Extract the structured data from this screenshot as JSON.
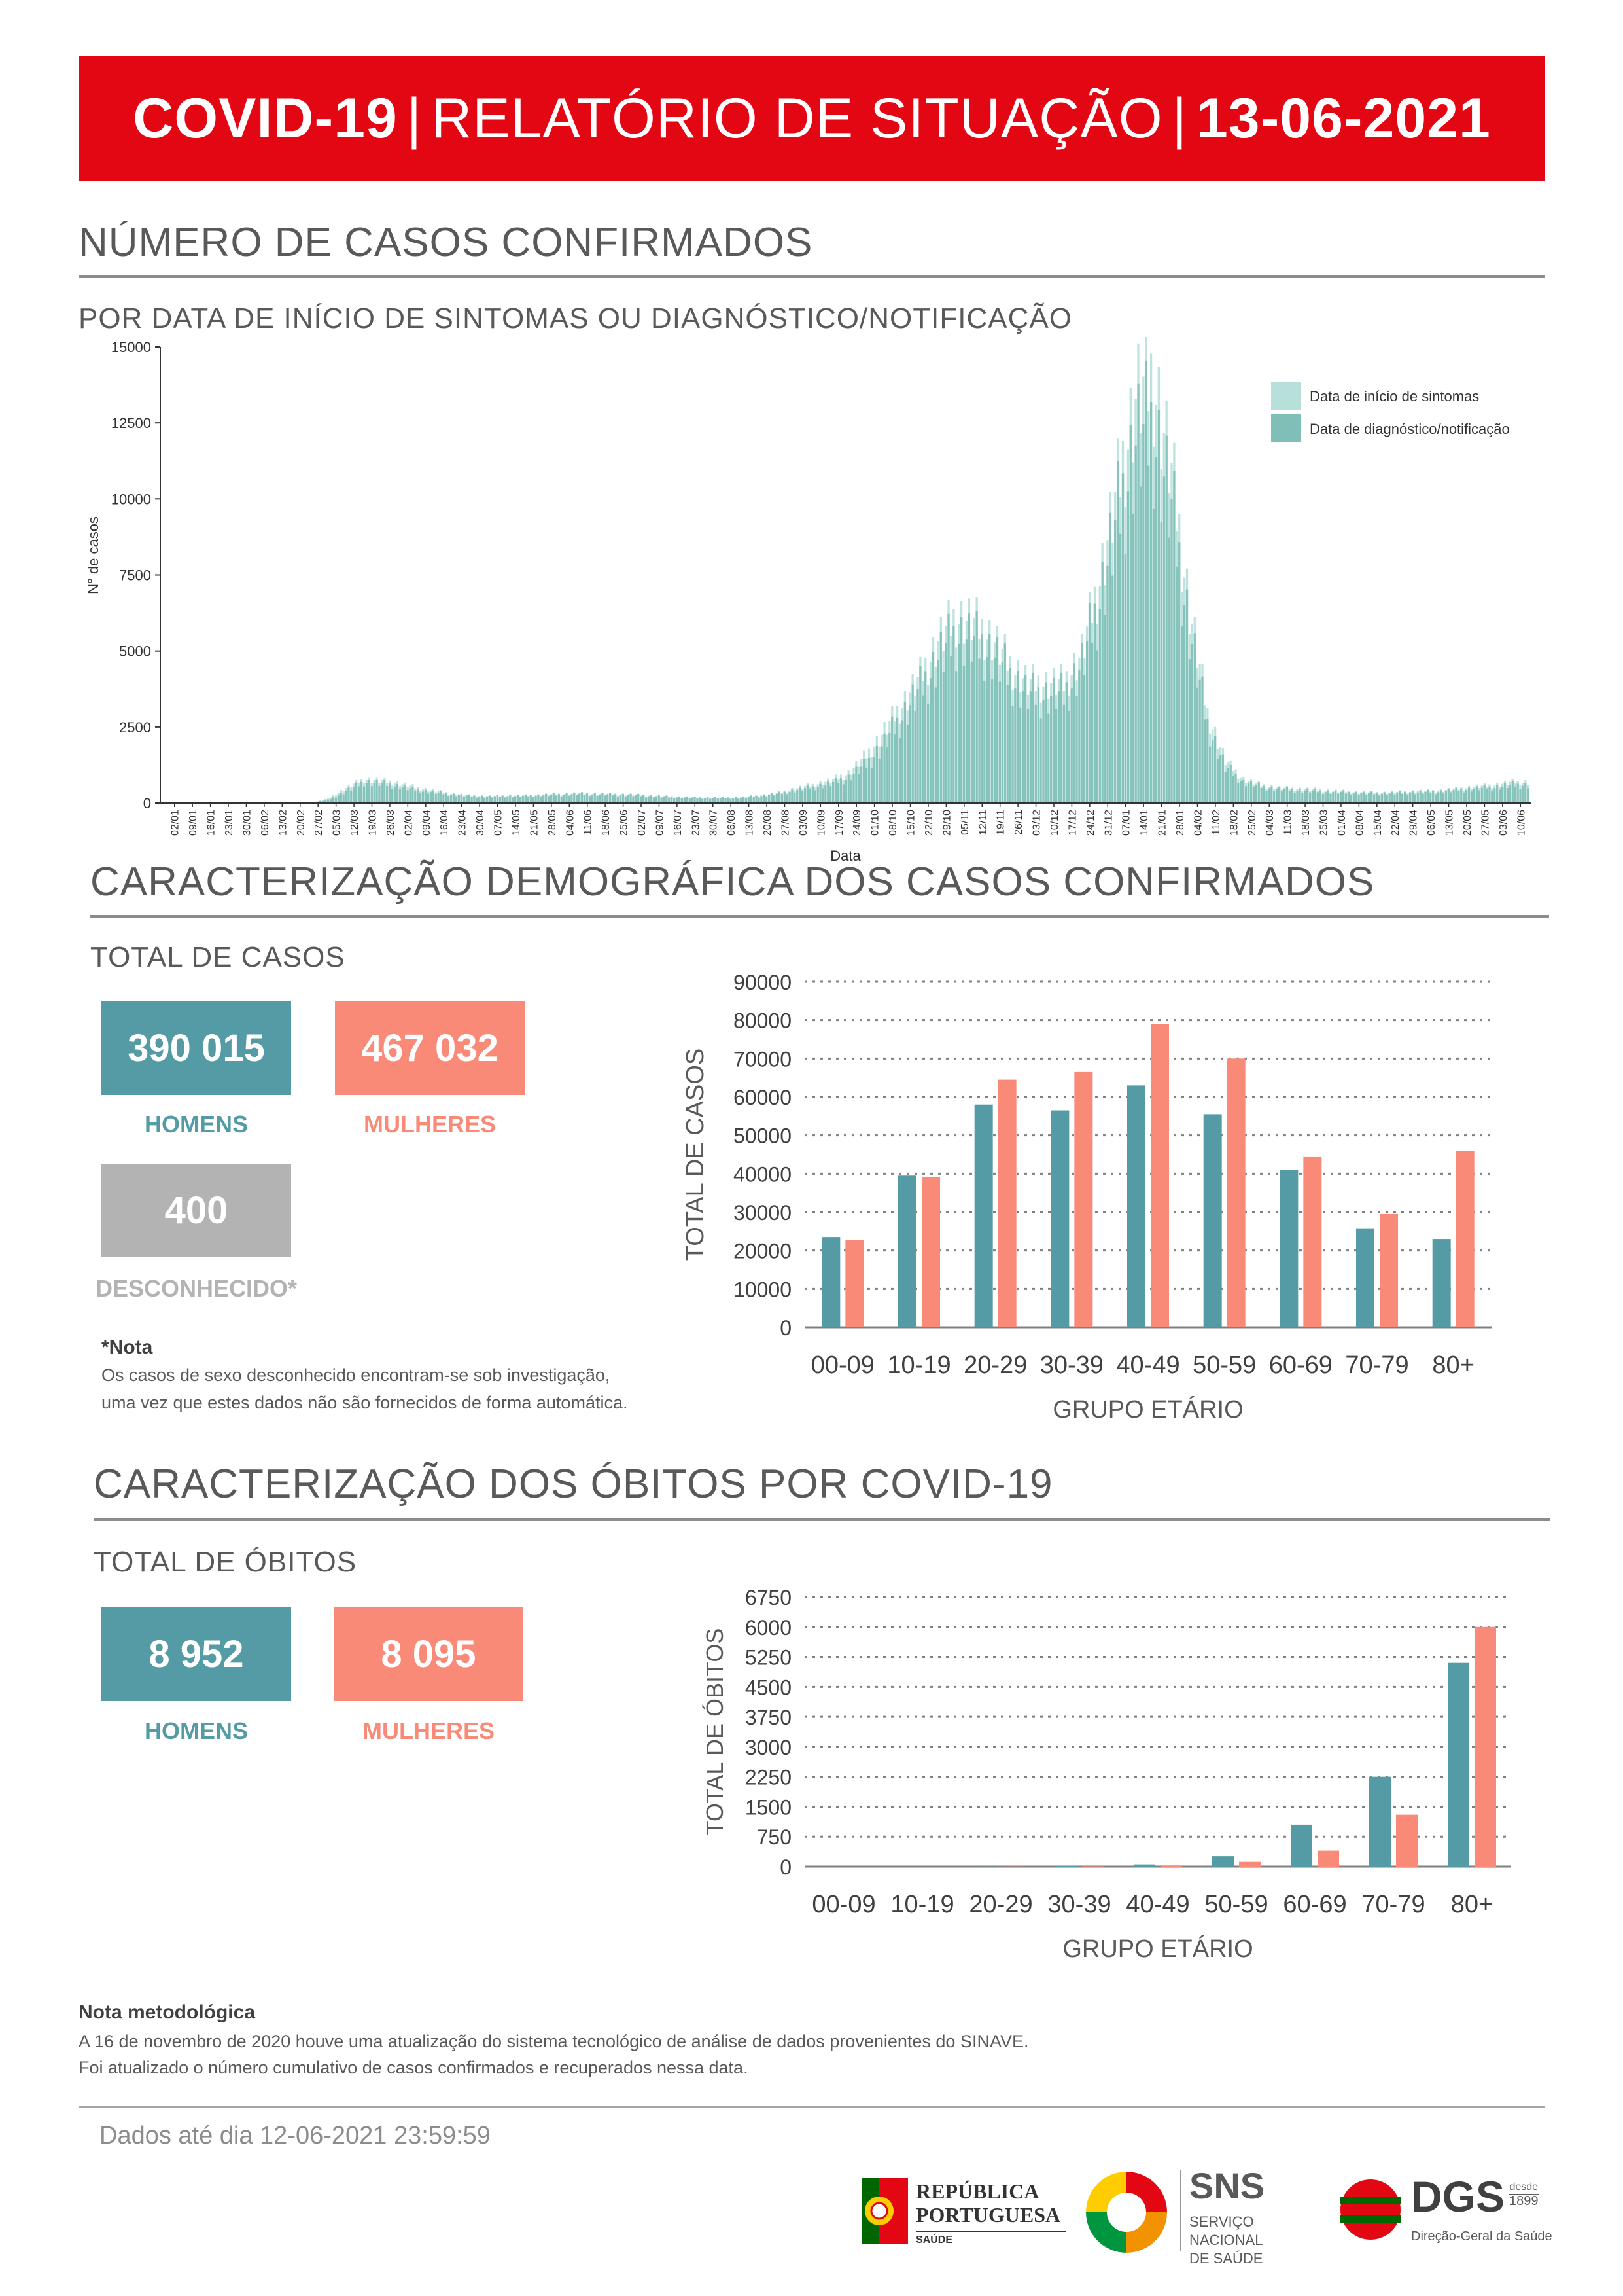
{
  "header": {
    "title_bold": "COVID-19",
    "separator": "|",
    "title_main": "RELATÓRIO DE SITUAÇÃO",
    "date": "13-06-2021"
  },
  "colors": {
    "banner_red": "#e30613",
    "teal": "#549ba5",
    "salmon": "#f98a78",
    "grey": "#b3b3b3",
    "light_teal": "#b7e0da",
    "mid_teal": "#7fbfb7"
  },
  "cases_section": {
    "title": "NÚMERO DE CASOS CONFIRMADOS",
    "subtitle": "POR DATA DE INÍCIO DE SINTOMAS OU DIAGNÓSTICO/NOTIFICAÇÃO"
  },
  "demographic_section": {
    "title": "CARACTERIZAÇÃO DEMOGRÁFICA DOS CASOS CONFIRMADOS",
    "total_label": "TOTAL DE CASOS",
    "men_value": "390 015",
    "men_label": "HOMENS",
    "women_value": "467 032",
    "women_label": "MULHERES",
    "unknown_value": "400",
    "unknown_label": "DESCONHECIDO*",
    "note_title": "*Nota",
    "note_line1": "Os casos de sexo desconhecido encontram-se sob investigação,",
    "note_line2": "uma vez que estes dados não são fornecidos de forma automática."
  },
  "deaths_section": {
    "title": "CARACTERIZAÇÃO DOS ÓBITOS POR COVID-19",
    "total_label": "TOTAL DE ÓBITOS",
    "men_value": "8 952",
    "men_label": "HOMENS",
    "women_value": "8 095",
    "women_label": "MULHERES"
  },
  "methodology": {
    "title": "Nota metodológica",
    "line1": "A 16 de novembro de 2020 houve uma atualização do sistema tecnológico de análise de dados provenientes do SINAVE.",
    "line2": "Foi atualizado o número cumulativo de casos confirmados e recuperados nessa data."
  },
  "footer": {
    "data_until": "Dados até dia 12-06-2021 23:59:59",
    "logo1_line1": "REPÚBLICA",
    "logo1_line2": "PORTUGUESA",
    "logo1_line3": "SAÚDE",
    "logo2_big": "SNS",
    "logo2_line1": "SERVIÇO NACIONAL",
    "logo2_line2": "DE SAÚDE",
    "logo3_big": "DGS",
    "logo3_since": "desde",
    "logo3_year": "1899",
    "logo3_sub": "Direção-Geral da Saúde"
  },
  "chart_data": [
    {
      "type": "bar",
      "id": "daily",
      "xlabel": "Data",
      "ylabel": "N° de casos",
      "ylim": [
        0,
        15000
      ],
      "yticks": [
        0,
        2500,
        5000,
        7500,
        10000,
        12500,
        15000
      ],
      "xtick_labels": [
        "02/01",
        "09/01",
        "16/01",
        "23/01",
        "30/01",
        "06/02",
        "13/02",
        "20/02",
        "27/02",
        "05/03",
        "12/03",
        "19/03",
        "26/03",
        "02/04",
        "09/04",
        "16/04",
        "23/04",
        "30/04",
        "07/05",
        "14/05",
        "21/05",
        "28/05",
        "04/06",
        "11/06",
        "18/06",
        "25/06",
        "02/07",
        "09/07",
        "16/07",
        "23/07",
        "30/07",
        "06/08",
        "13/08",
        "20/08",
        "27/08",
        "03/09",
        "10/09",
        "17/09",
        "24/09",
        "01/10",
        "08/10",
        "15/10",
        "22/10",
        "29/10",
        "05/11",
        "12/11",
        "19/11",
        "26/11",
        "03/12",
        "10/12",
        "17/12",
        "24/12",
        "31/12",
        "07/01",
        "14/01",
        "21/01",
        "28/01",
        "04/02",
        "11/02",
        "18/02",
        "25/02",
        "04/03",
        "11/03",
        "18/03",
        "25/03",
        "01/04",
        "08/04",
        "15/04",
        "22/04",
        "29/04",
        "06/05",
        "13/05",
        "20/05",
        "27/05",
        "03/06",
        "10/06"
      ],
      "legend_position": "top-right",
      "series": [
        {
          "name": "Data de início de sintomas",
          "color": "#b7e0da",
          "weekly_values": [
            0,
            0,
            0,
            0,
            0,
            0,
            0,
            0,
            0,
            150,
            500,
            800,
            750,
            650,
            500,
            400,
            300,
            250,
            230,
            250,
            250,
            280,
            300,
            320,
            300,
            300,
            280,
            250,
            220,
            200,
            180,
            180,
            190,
            250,
            330,
            480,
            600,
            750,
            1000,
            1600,
            2400,
            3300,
            4200,
            5400,
            6200,
            6000,
            5500,
            4600,
            4000,
            4000,
            4000,
            5000,
            7500,
            10500,
            13500,
            14200,
            11000,
            6500,
            3000,
            1400,
            800,
            600,
            500,
            480,
            450,
            400,
            380,
            350,
            350,
            380,
            400,
            420,
            480,
            550,
            600,
            700
          ]
        },
        {
          "name": "Data de diagnóstico/notificação",
          "color": "#7fbfb7",
          "weekly_values": [
            0,
            0,
            0,
            0,
            0,
            0,
            0,
            0,
            0,
            100,
            400,
            700,
            650,
            550,
            420,
            350,
            280,
            230,
            210,
            230,
            230,
            260,
            280,
            300,
            290,
            280,
            260,
            230,
            200,
            180,
            170,
            170,
            180,
            230,
            300,
            420,
            520,
            650,
            850,
            1300,
            2000,
            2900,
            3800,
            4800,
            5600,
            5400,
            5000,
            4200,
            3600,
            3600,
            3600,
            4600,
            6800,
            9500,
            12000,
            12500,
            9800,
            5800,
            2600,
            1200,
            700,
            550,
            450,
            430,
            400,
            370,
            340,
            320,
            320,
            340,
            360,
            380,
            430,
            480,
            520,
            600
          ]
        }
      ]
    },
    {
      "type": "bar",
      "id": "cases_age",
      "xlabel": "GRUPO ETÁRIO",
      "ylabel": "TOTAL DE CASOS",
      "ylim": [
        0,
        90000
      ],
      "yticks": [
        0,
        10000,
        20000,
        30000,
        40000,
        50000,
        60000,
        70000,
        80000,
        90000
      ],
      "categories": [
        "00-09",
        "10-19",
        "20-29",
        "30-39",
        "40-49",
        "50-59",
        "60-69",
        "70-79",
        "80+"
      ],
      "series": [
        {
          "name": "HOMENS",
          "color": "#549ba5",
          "values": [
            23500,
            39500,
            58000,
            56500,
            63000,
            55500,
            41000,
            25800,
            23000
          ]
        },
        {
          "name": "MULHERES",
          "color": "#f98a78",
          "values": [
            22800,
            39200,
            64500,
            66500,
            79000,
            70000,
            44500,
            29500,
            46000
          ]
        }
      ]
    },
    {
      "type": "bar",
      "id": "deaths_age",
      "xlabel": "GRUPO ETÁRIO",
      "ylabel": "TOTAL DE ÓBITOS",
      "ylim": [
        0,
        6750
      ],
      "yticks": [
        0,
        750,
        1500,
        2250,
        3000,
        3750,
        4500,
        5250,
        6000,
        6750
      ],
      "categories": [
        "00-09",
        "10-19",
        "20-29",
        "30-39",
        "40-49",
        "50-59",
        "60-69",
        "70-79",
        "80+"
      ],
      "series": [
        {
          "name": "HOMENS",
          "color": "#549ba5",
          "values": [
            0,
            1,
            4,
            15,
            55,
            260,
            1050,
            2250,
            5100
          ]
        },
        {
          "name": "MULHERES",
          "color": "#f98a78",
          "values": [
            0,
            0,
            3,
            8,
            30,
            120,
            400,
            1300,
            6000
          ]
        }
      ]
    }
  ]
}
